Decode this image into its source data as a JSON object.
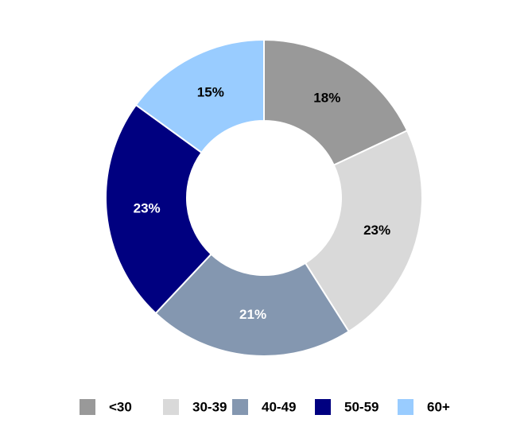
{
  "chart_data": {
    "type": "donut",
    "categories": [
      "<30",
      "30-39",
      "40-49",
      "50-59",
      "60+"
    ],
    "values": [
      18,
      23,
      21,
      23,
      15
    ],
    "value_labels": [
      "18%",
      "23%",
      "21%",
      "23%",
      "15%"
    ],
    "colors": [
      "#999999",
      "#d9d9d9",
      "#8497b0",
      "#000080",
      "#99ccff"
    ],
    "legend": "bottom"
  }
}
